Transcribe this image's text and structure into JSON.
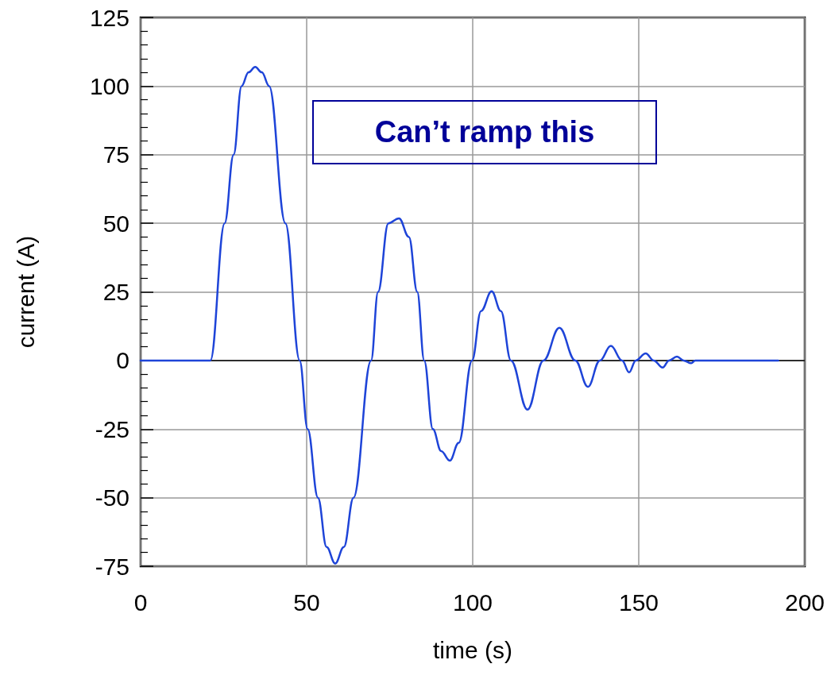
{
  "chart_data": {
    "type": "line",
    "xlabel": "time (s)",
    "ylabel": "current (A)",
    "x": [
      0,
      21,
      25.3,
      28,
      30.4,
      32.5,
      34.5,
      36.5,
      38.7,
      43.6,
      47.9,
      50.3,
      53.4,
      56,
      58.6,
      61.2,
      64.1,
      69.4,
      71.5,
      74.6,
      77.8,
      80.8,
      83.3,
      85.4,
      88,
      90.5,
      93.1,
      95.8,
      99.8,
      102.5,
      105.7,
      108.5,
      111.5,
      116.5,
      121.3,
      126.1,
      130.9,
      134.7,
      138.3,
      141.6,
      145,
      147.1,
      149.1,
      152.1,
      154.5,
      157.2,
      159.1,
      161.5,
      163.5,
      165.8,
      167,
      192
    ],
    "series": [
      {
        "color": "#1e44d8",
        "values": [
          0,
          0,
          50,
          75,
          100,
          105,
          107,
          105,
          100,
          50,
          0,
          -25,
          -50,
          -68,
          -74,
          -68,
          -50,
          0,
          25,
          50,
          51.8,
          45,
          25,
          0,
          -25,
          -33,
          -36.5,
          -30,
          0,
          18,
          25.2,
          18,
          0,
          -17.9,
          0,
          11.9,
          0,
          -9.6,
          0,
          5.3,
          0,
          -4.3,
          0,
          2.6,
          0,
          -2.6,
          0,
          1.4,
          0,
          -1,
          0,
          0
        ]
      }
    ],
    "xlim": [
      0,
      200
    ],
    "xticks": [
      0,
      50,
      100,
      150,
      200
    ],
    "ylim": [
      -75,
      125
    ],
    "yticks": [
      -75,
      -50,
      -25,
      0,
      25,
      50,
      75,
      100,
      125
    ],
    "grid": true,
    "marker": "none",
    "line_style": "solid",
    "ref_lines": [
      {
        "axis": "y",
        "value": 0,
        "color": "#000000"
      }
    ],
    "annotations": [
      "Can’t ramp this"
    ]
  }
}
